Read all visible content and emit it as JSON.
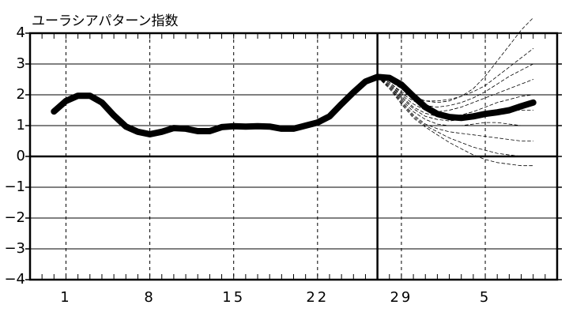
{
  "chart_data": {
    "type": "line",
    "title": "ユーラシアパターン指数",
    "xlim": [
      -2,
      42
    ],
    "ylim": [
      -4,
      4
    ],
    "xticks": [
      1,
      8,
      15,
      22,
      29,
      {
        "value": 36,
        "label": "5"
      }
    ],
    "yticks": [
      4,
      3,
      2,
      1,
      0,
      {
        "value": -1,
        "label": "−1"
      },
      {
        "value": -2,
        "label": "−2"
      },
      {
        "value": -3,
        "label": "−3"
      },
      {
        "value": -4,
        "label": "−4"
      }
    ],
    "xminorticks": [
      -1,
      0,
      1,
      2,
      3,
      4,
      5,
      6,
      7,
      8,
      9,
      10,
      11,
      12,
      13,
      14,
      15,
      16,
      17,
      18,
      19,
      20,
      21,
      22,
      23,
      24,
      25,
      26,
      27,
      28,
      29,
      30,
      31,
      32,
      33,
      34,
      35,
      36,
      37,
      38,
      39,
      40,
      41
    ],
    "vline": 27,
    "grid": true,
    "series": [
      {
        "color": "#000",
        "style": "dashed",
        "width": 0.8,
        "x": [
          27,
          28,
          29,
          30,
          31,
          32,
          33,
          34,
          35,
          36,
          37,
          38,
          39,
          40
        ],
        "values": [
          2.58,
          2.45,
          2.2,
          1.95,
          1.8,
          1.75,
          1.8,
          1.95,
          2.2,
          2.6,
          3.1,
          3.6,
          4.1,
          4.5
        ]
      },
      {
        "color": "#000",
        "style": "dashed",
        "width": 0.8,
        "x": [
          27,
          28,
          29,
          30,
          31,
          32,
          33,
          34,
          35,
          36,
          37,
          38,
          39,
          40
        ],
        "values": [
          2.58,
          2.4,
          2.1,
          1.9,
          1.8,
          1.8,
          1.85,
          1.95,
          2.1,
          2.3,
          2.6,
          2.9,
          3.2,
          3.5
        ]
      },
      {
        "color": "#000",
        "style": "dashed",
        "width": 0.8,
        "x": [
          27,
          28,
          29,
          30,
          31,
          32,
          33,
          34,
          35,
          36,
          37,
          38,
          39,
          40
        ],
        "values": [
          2.58,
          2.4,
          2.05,
          1.8,
          1.65,
          1.6,
          1.65,
          1.75,
          1.9,
          2.1,
          2.35,
          2.6,
          2.8,
          3.0
        ]
      },
      {
        "color": "#000",
        "style": "dashed",
        "width": 0.8,
        "x": [
          27,
          28,
          29,
          30,
          31,
          32,
          33,
          34,
          35,
          36,
          37,
          38,
          39,
          40
        ],
        "values": [
          2.58,
          2.35,
          2.0,
          1.7,
          1.5,
          1.45,
          1.5,
          1.6,
          1.75,
          1.9,
          2.05,
          2.2,
          2.35,
          2.5
        ]
      },
      {
        "color": "#000",
        "style": "dashed",
        "width": 0.8,
        "x": [
          27,
          28,
          29,
          30,
          31,
          32,
          33,
          34,
          35,
          36,
          37,
          38,
          39,
          40
        ],
        "values": [
          2.58,
          2.35,
          1.95,
          1.6,
          1.4,
          1.3,
          1.3,
          1.35,
          1.45,
          1.6,
          1.75,
          1.85,
          1.95,
          2.0
        ]
      },
      {
        "color": "#000",
        "style": "dashed",
        "width": 0.8,
        "x": [
          27,
          28,
          29,
          30,
          31,
          32,
          33,
          34,
          35,
          36,
          37,
          38,
          39,
          40
        ],
        "values": [
          2.58,
          2.3,
          1.9,
          1.55,
          1.3,
          1.2,
          1.15,
          1.2,
          1.3,
          1.4,
          1.5,
          1.5,
          1.5,
          1.5
        ]
      },
      {
        "color": "#000",
        "style": "dashed",
        "width": 0.8,
        "x": [
          27,
          28,
          29,
          30,
          31,
          32,
          33,
          34,
          35,
          36,
          37,
          38,
          39,
          40
        ],
        "values": [
          2.58,
          2.3,
          1.85,
          1.45,
          1.2,
          1.05,
          1.0,
          1.0,
          1.05,
          1.1,
          1.1,
          1.05,
          1.0,
          1.0
        ]
      },
      {
        "color": "#000",
        "style": "dashed",
        "width": 0.8,
        "x": [
          27,
          28,
          29,
          30,
          31,
          32,
          33,
          34,
          35,
          36,
          37,
          38,
          39,
          40
        ],
        "values": [
          2.58,
          2.25,
          1.8,
          1.35,
          1.05,
          0.9,
          0.8,
          0.75,
          0.7,
          0.65,
          0.6,
          0.55,
          0.5,
          0.5
        ]
      },
      {
        "color": "#000",
        "style": "dashed",
        "width": 0.8,
        "x": [
          27,
          28,
          29,
          30,
          31,
          32,
          33,
          34,
          35,
          36,
          37,
          38,
          39,
          40
        ],
        "values": [
          2.58,
          2.25,
          1.75,
          1.3,
          1.0,
          0.8,
          0.6,
          0.45,
          0.3,
          0.2,
          0.1,
          0.05,
          0.0,
          0.0
        ]
      },
      {
        "color": "#000",
        "style": "dashed",
        "width": 0.8,
        "x": [
          27,
          28,
          29,
          30,
          31,
          32,
          33,
          34,
          35,
          36,
          37,
          38,
          39,
          40
        ],
        "values": [
          2.58,
          2.2,
          1.7,
          1.25,
          0.95,
          0.7,
          0.45,
          0.25,
          0.05,
          -0.1,
          -0.2,
          -0.25,
          -0.3,
          -0.3
        ]
      },
      {
        "color": "#000",
        "style": "solid",
        "width": 8,
        "x": [
          0,
          1,
          2,
          3,
          4,
          5,
          6,
          7,
          8,
          9,
          10,
          11,
          12,
          13,
          14,
          15,
          16,
          17,
          18,
          19,
          20,
          21,
          22,
          23,
          24,
          25,
          26,
          27,
          28,
          29,
          30,
          31,
          32,
          33,
          34,
          35,
          36,
          37,
          38,
          39,
          40
        ],
        "values": [
          1.46,
          1.8,
          1.97,
          1.97,
          1.75,
          1.33,
          0.97,
          0.8,
          0.72,
          0.8,
          0.92,
          0.9,
          0.82,
          0.82,
          0.95,
          0.98,
          0.97,
          0.98,
          0.97,
          0.9,
          0.9,
          1.0,
          1.1,
          1.3,
          1.7,
          2.08,
          2.43,
          2.58,
          2.55,
          2.33,
          1.95,
          1.6,
          1.38,
          1.28,
          1.25,
          1.3,
          1.38,
          1.43,
          1.5,
          1.63,
          1.75
        ]
      }
    ]
  }
}
